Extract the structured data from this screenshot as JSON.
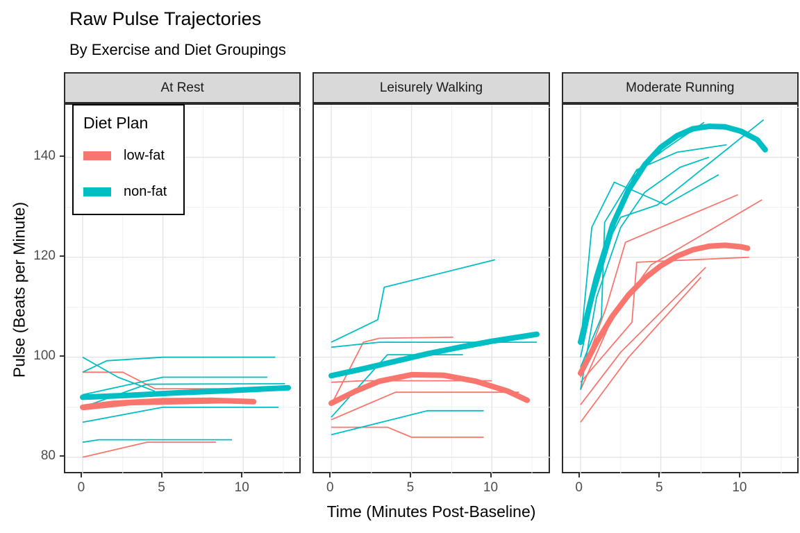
{
  "page": {
    "title": "Raw Pulse Trajectories",
    "subtitle": "By Exercise and Diet Groupings"
  },
  "chart_data": {
    "type": "line",
    "title": "Raw Pulse Trajectories",
    "subtitle": "By Exercise and Diet Groupings",
    "xlabel": "Time (Minutes Post-Baseline)",
    "ylabel": "Pulse (Beats per Minute)",
    "x_ticks": [
      0,
      5,
      10
    ],
    "y_ticks": [
      80,
      100,
      120,
      140
    ],
    "x_minor": [
      2.5,
      7.5,
      12.5
    ],
    "y_minor": [
      90,
      110,
      130,
      150
    ],
    "xlim": [
      -1.08,
      13.68
    ],
    "ylim": [
      76.5,
      150.5
    ],
    "grid": true,
    "panel_background": "#FFFFFF",
    "grid_major_color": "#E4E4E4",
    "grid_minor_color": "#F0F0F0",
    "strip_fill": "#D9D9D9",
    "legend": {
      "title": "Diet Plan",
      "position": "inside-top-left",
      "entries": [
        {
          "label": "low-fat",
          "color": "#F8766D"
        },
        {
          "label": "non-fat",
          "color": "#00BFC4"
        }
      ]
    },
    "facets": [
      {
        "label": "At Rest",
        "series": [
          {
            "diet": "low-fat",
            "type": "raw",
            "points": [
              [
                0,
                97
              ],
              [
                2.5,
                97
              ],
              [
                4.5,
                93.7
              ],
              [
                9,
                93.7
              ]
            ]
          },
          {
            "diet": "low-fat",
            "type": "raw",
            "points": [
              [
                0,
                89.5
              ],
              [
                3,
                90.5
              ],
              [
                10.5,
                91
              ]
            ]
          },
          {
            "diet": "low-fat",
            "type": "raw",
            "points": [
              [
                0,
                80
              ],
              [
                4,
                83
              ],
              [
                8.3,
                83
              ]
            ]
          },
          {
            "diet": "non-fat",
            "type": "raw",
            "points": [
              [
                0,
                100
              ],
              [
                2.2,
                96
              ],
              [
                4.5,
                93.2
              ]
            ]
          },
          {
            "diet": "non-fat",
            "type": "raw",
            "points": [
              [
                0,
                97
              ],
              [
                1.5,
                99.3
              ],
              [
                5,
                100
              ],
              [
                12,
                100
              ]
            ]
          },
          {
            "diet": "non-fat",
            "type": "raw",
            "points": [
              [
                0,
                92.5
              ],
              [
                5,
                96
              ],
              [
                11.5,
                96
              ]
            ]
          },
          {
            "diet": "non-fat",
            "type": "raw",
            "points": [
              [
                0,
                90
              ],
              [
                4,
                94.6
              ],
              [
                12.6,
                94.7
              ]
            ]
          },
          {
            "diet": "non-fat",
            "type": "raw",
            "points": [
              [
                0,
                87
              ],
              [
                5,
                90
              ],
              [
                12.2,
                90
              ]
            ]
          },
          {
            "diet": "non-fat",
            "type": "raw",
            "points": [
              [
                0,
                83
              ],
              [
                1,
                83.5
              ],
              [
                9.3,
                83.5
              ]
            ]
          },
          {
            "diet": "low-fat",
            "type": "smooth",
            "points": [
              [
                0,
                90
              ],
              [
                2,
                90.8
              ],
              [
                5,
                91.3
              ],
              [
                8,
                91.4
              ],
              [
                10.65,
                91.1
              ]
            ]
          },
          {
            "diet": "non-fat",
            "type": "smooth",
            "points": [
              [
                0,
                92
              ],
              [
                3,
                92.4
              ],
              [
                6,
                92.9
              ],
              [
                9,
                93.3
              ],
              [
                12.8,
                93.9
              ]
            ]
          }
        ]
      },
      {
        "label": "Leisurely Walking",
        "series": [
          {
            "diet": "low-fat",
            "type": "raw",
            "points": [
              [
                0,
                90.5
              ],
              [
                2,
                103
              ],
              [
                3,
                103.8
              ],
              [
                7.6,
                104
              ]
            ]
          },
          {
            "diet": "low-fat",
            "type": "raw",
            "points": [
              [
                0,
                95
              ],
              [
                2,
                95.3
              ],
              [
                10,
                95.3
              ]
            ]
          },
          {
            "diet": "low-fat",
            "type": "raw",
            "points": [
              [
                0,
                87.5
              ],
              [
                4,
                93
              ],
              [
                11.7,
                93
              ]
            ]
          },
          {
            "diet": "low-fat",
            "type": "raw",
            "points": [
              [
                0,
                86
              ],
              [
                3.5,
                86
              ],
              [
                5,
                84
              ],
              [
                9.5,
                84
              ]
            ]
          },
          {
            "diet": "non-fat",
            "type": "raw",
            "points": [
              [
                0,
                103
              ],
              [
                2.9,
                107.5
              ],
              [
                3.3,
                114
              ],
              [
                10.2,
                119.5
              ]
            ]
          },
          {
            "diet": "non-fat",
            "type": "raw",
            "points": [
              [
                0,
                102
              ],
              [
                3,
                103
              ],
              [
                12.8,
                103
              ]
            ]
          },
          {
            "diet": "non-fat",
            "type": "raw",
            "points": [
              [
                0,
                88
              ],
              [
                3.5,
                100.5
              ],
              [
                8.2,
                100.5
              ]
            ]
          },
          {
            "diet": "non-fat",
            "type": "raw",
            "points": [
              [
                0,
                84.5
              ],
              [
                6,
                89.3
              ],
              [
                9.5,
                89.3
              ]
            ]
          },
          {
            "diet": "low-fat",
            "type": "smooth",
            "points": [
              [
                0,
                90.8
              ],
              [
                1.5,
                93.2
              ],
              [
                3,
                95.2
              ],
              [
                5,
                96.5
              ],
              [
                7,
                96.4
              ],
              [
                9,
                95.2
              ],
              [
                11,
                93.2
              ],
              [
                12.2,
                91.4
              ]
            ]
          },
          {
            "diet": "non-fat",
            "type": "smooth",
            "points": [
              [
                0,
                96.3
              ],
              [
                2,
                97.7
              ],
              [
                4,
                99.2
              ],
              [
                6,
                100.7
              ],
              [
                8,
                102
              ],
              [
                10,
                103.2
              ],
              [
                12.8,
                104.6
              ]
            ]
          }
        ]
      },
      {
        "label": "Moderate Running",
        "series": [
          {
            "diet": "low-fat",
            "type": "raw",
            "points": [
              [
                0,
                96
              ],
              [
                1.6,
                110
              ],
              [
                2.8,
                123
              ],
              [
                9.8,
                132.5
              ]
            ]
          },
          {
            "diet": "low-fat",
            "type": "raw",
            "points": [
              [
                0,
                93.5
              ],
              [
                2,
                108
              ],
              [
                4.4,
                118.5
              ],
              [
                11.3,
                131.5
              ]
            ]
          },
          {
            "diet": "low-fat",
            "type": "raw",
            "points": [
              [
                0,
                95
              ],
              [
                3.2,
                107
              ],
              [
                3.5,
                119
              ],
              [
                10.5,
                120
              ]
            ]
          },
          {
            "diet": "low-fat",
            "type": "raw",
            "points": [
              [
                0,
                90.5
              ],
              [
                2.5,
                101
              ],
              [
                7.8,
                118
              ]
            ]
          },
          {
            "diet": "low-fat",
            "type": "raw",
            "points": [
              [
                0,
                87
              ],
              [
                3,
                100
              ],
              [
                7.5,
                116
              ]
            ]
          },
          {
            "diet": "non-fat",
            "type": "raw",
            "points": [
              [
                0,
                102.5
              ],
              [
                0.7,
                126
              ],
              [
                2.1,
                135
              ],
              [
                5.3,
                130.5
              ],
              [
                8.6,
                136.5
              ]
            ]
          },
          {
            "diet": "non-fat",
            "type": "raw",
            "points": [
              [
                0,
                100
              ],
              [
                1.4,
                121
              ],
              [
                2.5,
                128
              ],
              [
                4.8,
                130.5
              ],
              [
                11.4,
                147.5
              ]
            ]
          },
          {
            "diet": "non-fat",
            "type": "raw",
            "points": [
              [
                0,
                103
              ],
              [
                1.1,
                115
              ],
              [
                2.2,
                127
              ],
              [
                3.4,
                137
              ],
              [
                5.2,
                141.5
              ],
              [
                7.7,
                147
              ]
            ]
          },
          {
            "diet": "non-fat",
            "type": "raw",
            "points": [
              [
                0,
                98
              ],
              [
                1.3,
                108
              ],
              [
                1.5,
                127
              ],
              [
                3.5,
                137.5
              ],
              [
                6,
                141
              ],
              [
                9.1,
                142.5
              ]
            ]
          },
          {
            "diet": "non-fat",
            "type": "raw",
            "points": [
              [
                0,
                93.5
              ],
              [
                1,
                112
              ],
              [
                2.5,
                126
              ],
              [
                4,
                133
              ],
              [
                6.2,
                138
              ],
              [
                8,
                140
              ]
            ]
          },
          {
            "diet": "low-fat",
            "type": "smooth",
            "points": [
              [
                0,
                96.8
              ],
              [
                1,
                103
              ],
              [
                2,
                108.3
              ],
              [
                3,
                112.5
              ],
              [
                4,
                115.8
              ],
              [
                5,
                118.3
              ],
              [
                6,
                120.2
              ],
              [
                7,
                121.5
              ],
              [
                8,
                122.2
              ],
              [
                9,
                122.4
              ],
              [
                10,
                122.1
              ],
              [
                10.4,
                121.8
              ]
            ]
          },
          {
            "diet": "non-fat",
            "type": "smooth",
            "points": [
              [
                0,
                103
              ],
              [
                1,
                116
              ],
              [
                2,
                126.5
              ],
              [
                3,
                133.5
              ],
              [
                4,
                138.5
              ],
              [
                5,
                142
              ],
              [
                6,
                144.3
              ],
              [
                7,
                145.7
              ],
              [
                8,
                146.2
              ],
              [
                9,
                146.1
              ],
              [
                10,
                145.2
              ],
              [
                11,
                143.5
              ],
              [
                11.5,
                141.5
              ]
            ]
          }
        ]
      }
    ]
  }
}
